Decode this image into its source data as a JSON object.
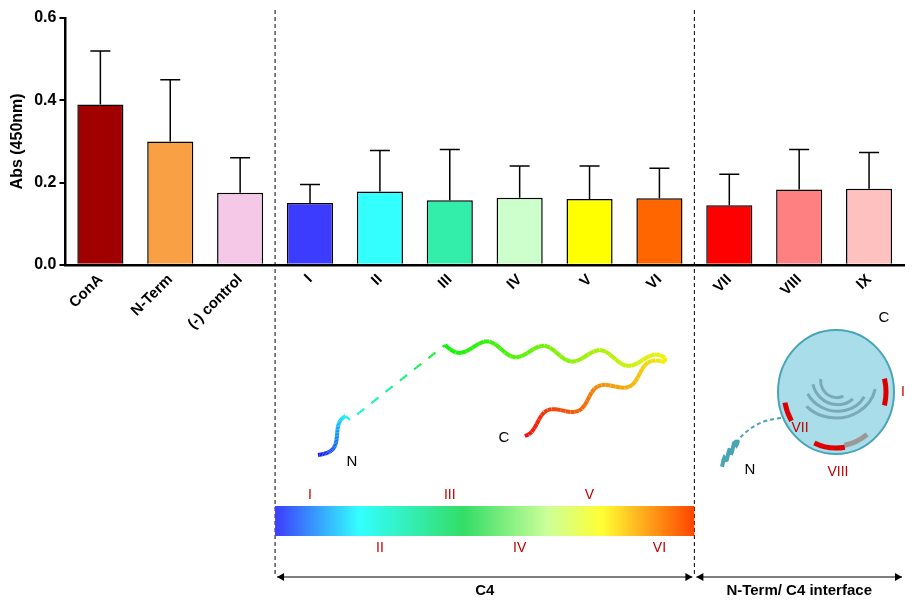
{
  "chart_data": {
    "type": "bar",
    "y_label": "Abs (450nm)",
    "categories": [
      "ConA",
      "N-Term",
      "(-) control",
      "I",
      "II",
      "III",
      "IV",
      "V",
      "VI",
      "VII",
      "VIII",
      "IX"
    ],
    "values": [
      0.39,
      0.3,
      0.175,
      0.15,
      0.178,
      0.157,
      0.163,
      0.16,
      0.162,
      0.145,
      0.183,
      0.185
    ],
    "errors": [
      0.13,
      0.15,
      0.085,
      0.045,
      0.1,
      0.123,
      0.077,
      0.08,
      0.073,
      0.075,
      0.097,
      0.088
    ],
    "colors": [
      "#a00000",
      "#f9a044",
      "#f6c8e8",
      "#3c3cff",
      "#33ffff",
      "#33eeaa",
      "#ccffcc",
      "#ffff00",
      "#ff6600",
      "#ff0000",
      "#ff8080",
      "#ffc0c0"
    ],
    "ylim": [
      0,
      0.6
    ],
    "yticks": [
      {
        "value": 0,
        "label": "0.0"
      },
      {
        "value": 0.2,
        "label": "0.2"
      },
      {
        "value": 0.4,
        "label": "0.4"
      },
      {
        "value": 0.6,
        "label": "0.6"
      }
    ],
    "grid": false,
    "sections": [
      {
        "label": "C4",
        "from": "I",
        "to": "VI"
      },
      {
        "label": "N-Term/ C4 interface",
        "from": "VII",
        "to": "IX"
      }
    ],
    "annotations": {
      "c4_structure": [
        "N",
        "C"
      ],
      "gradient_labels": [
        "I",
        "II",
        "III",
        "IV",
        "V",
        "VI"
      ],
      "interface_structure": {
        "ends": [
          "N",
          "C"
        ],
        "regions": [
          "VII",
          "VIII",
          "I"
        ]
      }
    }
  }
}
